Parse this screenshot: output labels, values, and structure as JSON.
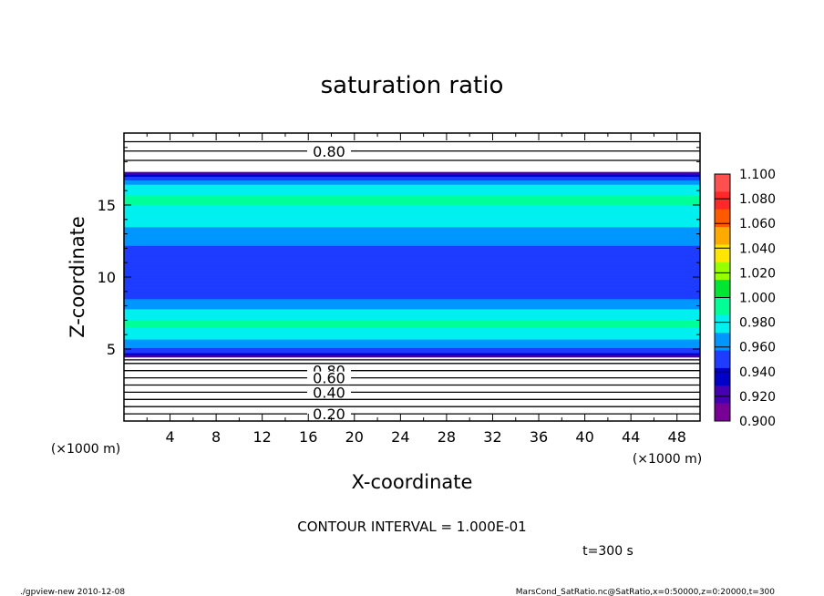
{
  "chart_data": {
    "type": "heatmap",
    "title": "saturation ratio",
    "xlabel": "X-coordinate",
    "ylabel": "Z-coordinate",
    "x_unit": "(×1000 m)",
    "y_unit": "(×1000 m)",
    "xlim": [
      0,
      50
    ],
    "ylim": [
      0,
      20
    ],
    "x_ticks": [
      "4",
      "8",
      "12",
      "16",
      "20",
      "24",
      "28",
      "32",
      "36",
      "40",
      "44",
      "48"
    ],
    "y_ticks": [
      "5",
      "10",
      "15"
    ],
    "z_profile": [
      {
        "z": 0.0,
        "value": 0.15
      },
      {
        "z": 4.2,
        "value": 0.85
      },
      {
        "z": 4.5,
        "value": 0.91
      },
      {
        "z": 4.75,
        "value": 0.94
      },
      {
        "z": 5.2,
        "value": 0.965
      },
      {
        "z": 6.0,
        "value": 0.99
      },
      {
        "z": 6.8,
        "value": 1.005
      },
      {
        "z": 7.6,
        "value": 0.985
      },
      {
        "z": 8.5,
        "value": 0.96
      },
      {
        "z": 10.0,
        "value": 0.952
      },
      {
        "z": 11.6,
        "value": 0.952
      },
      {
        "z": 12.6,
        "value": 0.965
      },
      {
        "z": 13.8,
        "value": 0.985
      },
      {
        "z": 15.5,
        "value": 1.005
      },
      {
        "z": 16.4,
        "value": 0.985
      },
      {
        "z": 16.85,
        "value": 0.955
      },
      {
        "z": 17.05,
        "value": 0.935
      },
      {
        "z": 17.25,
        "value": 0.91
      },
      {
        "z": 17.45,
        "value": 0.85
      },
      {
        "z": 20.0,
        "value": 0.6
      }
    ],
    "contour_lines_z": [
      0.5,
      1.0,
      1.5,
      2.0,
      2.5,
      3.0,
      3.5,
      4.0,
      4.25,
      18.1,
      18.75,
      19.4
    ],
    "contour_labels": [
      {
        "text": "0.80",
        "z": 18.75
      },
      {
        "text": "0.80",
        "z": 3.5
      },
      {
        "text": "0.60",
        "z": 3.0
      },
      {
        "text": "0.40",
        "z": 2.0
      },
      {
        "text": "0.20",
        "z": 0.5
      }
    ],
    "colorbar": {
      "levels": [
        "1.100",
        "1.080",
        "1.060",
        "1.040",
        "1.020",
        "1.000",
        "0.980",
        "0.960",
        "0.940",
        "0.920",
        "0.900"
      ],
      "colors": [
        "#ff5050",
        "#ff2828",
        "#ff5a00",
        "#ffaa00",
        "#ffe600",
        "#96ff00",
        "#00e632",
        "#00ff96",
        "#00f0f0",
        "#0096ff",
        "#1e3cff",
        "#0000c8",
        "#4600b4",
        "#780096"
      ]
    },
    "contour_interval_text": "CONTOUR INTERVAL = 1.000E-01",
    "time_text": "t=300 s"
  },
  "footer": {
    "left": "./gpview-new  2010-12-08",
    "right": "MarsCond_SatRatio.nc@SatRatio,x=0:50000,z=0:20000,t=300"
  }
}
